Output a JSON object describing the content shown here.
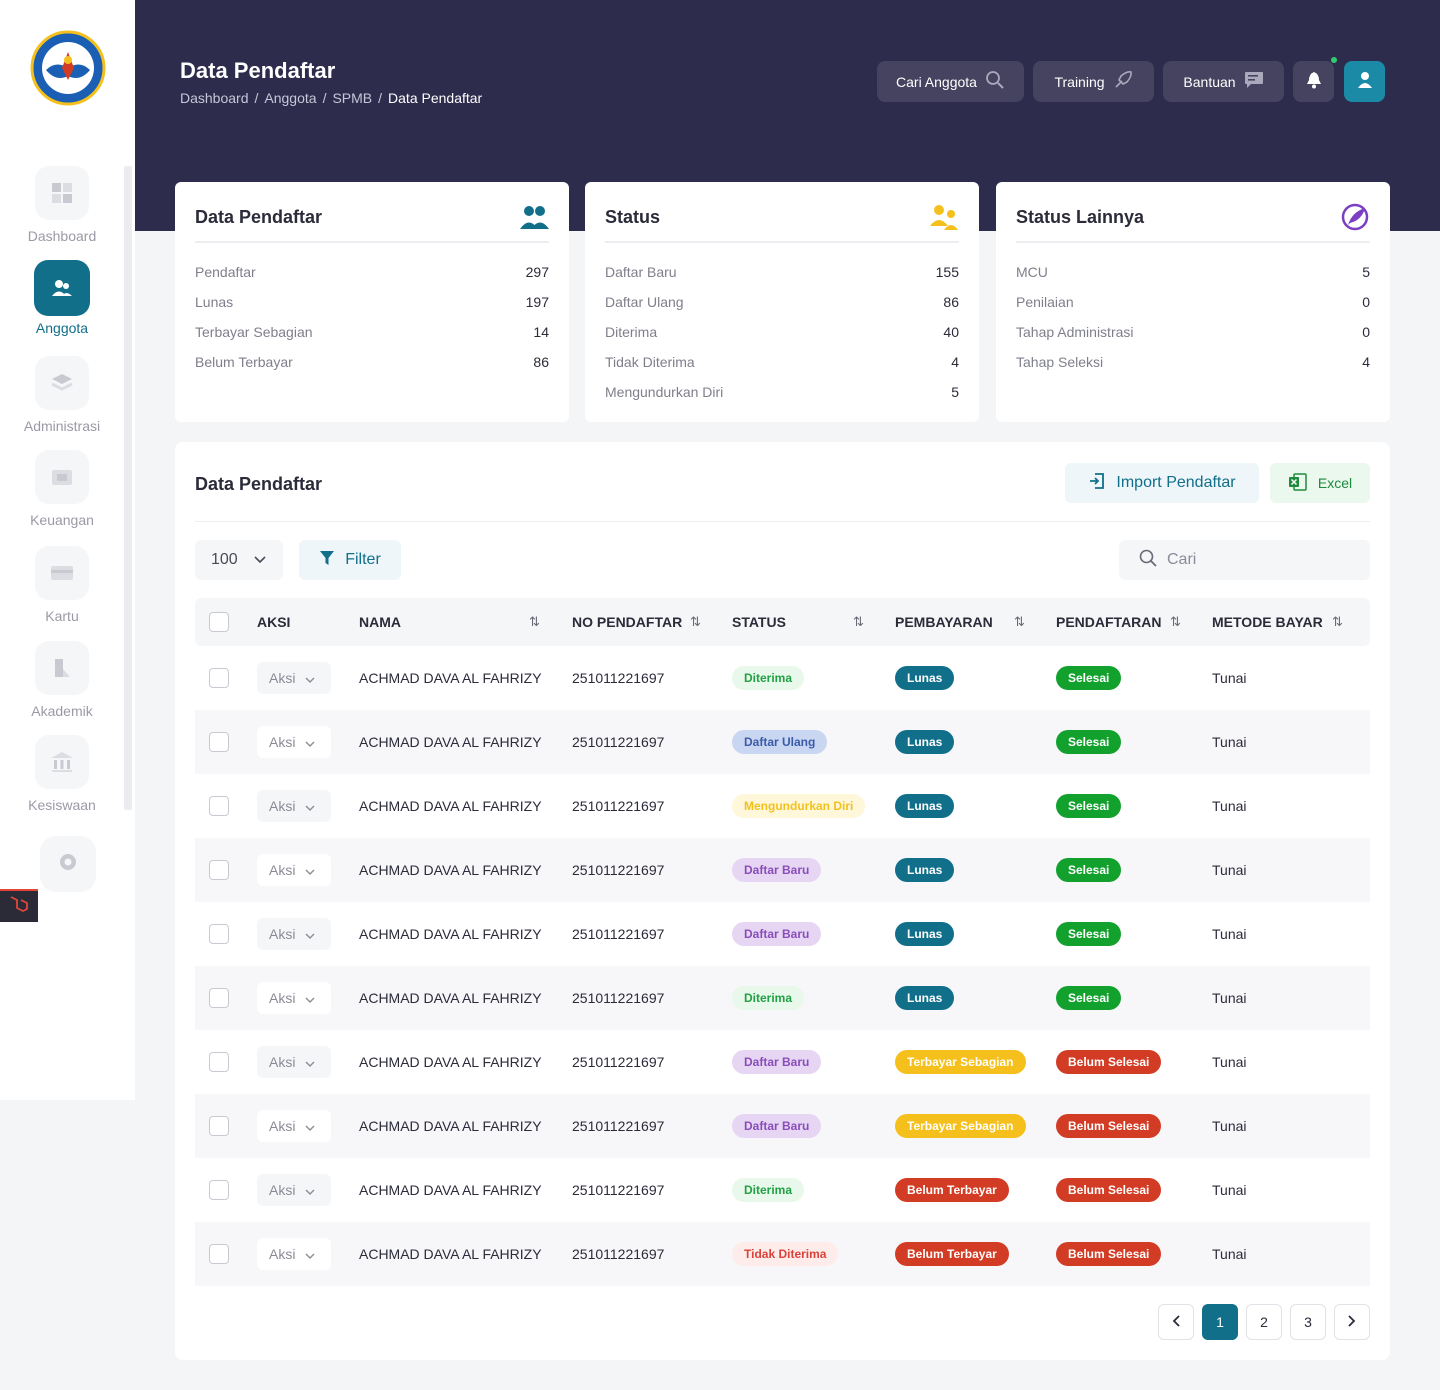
{
  "sidebar": {
    "logo": "tut-wuri-handayani-logo",
    "items": [
      {
        "label": "Dashboard",
        "icon": "grid-icon"
      },
      {
        "label": "Anggota",
        "icon": "users-icon"
      },
      {
        "label": "Administrasi",
        "icon": "layers-icon"
      },
      {
        "label": "Keuangan",
        "icon": "wallet-icon"
      },
      {
        "label": "Kartu",
        "icon": "card-icon"
      },
      {
        "label": "Akademik",
        "icon": "book-icon"
      },
      {
        "label": "Kesiswaan",
        "icon": "bank-icon"
      }
    ],
    "settings_icon": "gear-icon"
  },
  "header": {
    "title": "Data Pendaftar",
    "breadcrumb": [
      "Dashboard",
      "Anggota",
      "SPMB",
      "Data Pendaftar"
    ],
    "buttons": {
      "cari": "Cari Anggota",
      "training": "Training",
      "bantuan": "Bantuan"
    }
  },
  "cards": [
    {
      "title": "Data Pendaftar",
      "rows": [
        {
          "label": "Pendaftar",
          "value": "297"
        },
        {
          "label": "Lunas",
          "value": "197"
        },
        {
          "label": "Terbayar Sebagian",
          "value": "14"
        },
        {
          "label": "Belum Terbayar",
          "value": "86"
        }
      ]
    },
    {
      "title": "Status",
      "rows": [
        {
          "label": "Daftar Baru",
          "value": "155"
        },
        {
          "label": "Daftar Ulang",
          "value": "86"
        },
        {
          "label": "Diterima",
          "value": "40"
        },
        {
          "label": "Tidak Diterima",
          "value": "4"
        },
        {
          "label": "Mengundurkan Diri",
          "value": "5"
        }
      ]
    },
    {
      "title": "Status Lainnya",
      "rows": [
        {
          "label": "MCU",
          "value": "5"
        },
        {
          "label": "Penilaian",
          "value": "0"
        },
        {
          "label": "Tahap Administrasi",
          "value": "0"
        },
        {
          "label": "Tahap Seleksi",
          "value": "4"
        }
      ]
    }
  ],
  "table_section": {
    "title": "Data Pendaftar",
    "import_label": "Import Pendaftar",
    "excel_label": "Excel",
    "per_page": "100",
    "filter_label": "Filter",
    "search_placeholder": "Cari",
    "columns": [
      "AKSI",
      "NAMA",
      "NO PENDAFTAR",
      "STATUS",
      "PEMBAYARAN",
      "PENDAFTARAN",
      "METODE BAYAR"
    ],
    "rows": [
      {
        "aksi": "Aksi",
        "nama": "ACHMAD DAVA AL FAHRIZY",
        "no": "251011221697",
        "status": "Diterima",
        "pembayaran": "Lunas",
        "pendaftaran": "Selesai",
        "metode": "Tunai"
      },
      {
        "aksi": "Aksi",
        "nama": "ACHMAD DAVA AL FAHRIZY",
        "no": "251011221697",
        "status": "Daftar Ulang",
        "pembayaran": "Lunas",
        "pendaftaran": "Selesai",
        "metode": "Tunai"
      },
      {
        "aksi": "Aksi",
        "nama": "ACHMAD DAVA AL FAHRIZY",
        "no": "251011221697",
        "status": "Mengundurkan Diri",
        "pembayaran": "Lunas",
        "pendaftaran": "Selesai",
        "metode": "Tunai"
      },
      {
        "aksi": "Aksi",
        "nama": "ACHMAD DAVA AL FAHRIZY",
        "no": "251011221697",
        "status": "Daftar Baru",
        "pembayaran": "Lunas",
        "pendaftaran": "Selesai",
        "metode": "Tunai"
      },
      {
        "aksi": "Aksi",
        "nama": "ACHMAD DAVA AL FAHRIZY",
        "no": "251011221697",
        "status": "Daftar Baru",
        "pembayaran": "Lunas",
        "pendaftaran": "Selesai",
        "metode": "Tunai"
      },
      {
        "aksi": "Aksi",
        "nama": "ACHMAD DAVA AL FAHRIZY",
        "no": "251011221697",
        "status": "Diterima",
        "pembayaran": "Lunas",
        "pendaftaran": "Selesai",
        "metode": "Tunai"
      },
      {
        "aksi": "Aksi",
        "nama": "ACHMAD DAVA AL FAHRIZY",
        "no": "251011221697",
        "status": "Daftar Baru",
        "pembayaran": "Terbayar Sebagian",
        "pendaftaran": "Belum Selesai",
        "metode": "Tunai"
      },
      {
        "aksi": "Aksi",
        "nama": "ACHMAD DAVA AL FAHRIZY",
        "no": "251011221697",
        "status": "Daftar Baru",
        "pembayaran": "Terbayar Sebagian",
        "pendaftaran": "Belum Selesai",
        "metode": "Tunai"
      },
      {
        "aksi": "Aksi",
        "nama": "ACHMAD DAVA AL FAHRIZY",
        "no": "251011221697",
        "status": "Diterima",
        "pembayaran": "Belum Terbayar",
        "pendaftaran": "Belum Selesai",
        "metode": "Tunai"
      },
      {
        "aksi": "Aksi",
        "nama": "ACHMAD DAVA AL FAHRIZY",
        "no": "251011221697",
        "status": "Tidak Diterima",
        "pembayaran": "Belum Terbayar",
        "pendaftaran": "Belum Selesai",
        "metode": "Tunai"
      }
    ],
    "pagination": {
      "pages": [
        "1",
        "2",
        "3"
      ],
      "current": "1"
    }
  },
  "colors": {
    "header_bg": "#2e2c4c",
    "accent": "#116f8a",
    "success": "#12a12c",
    "danger": "#d23c25",
    "warning": "#f5c01c"
  }
}
